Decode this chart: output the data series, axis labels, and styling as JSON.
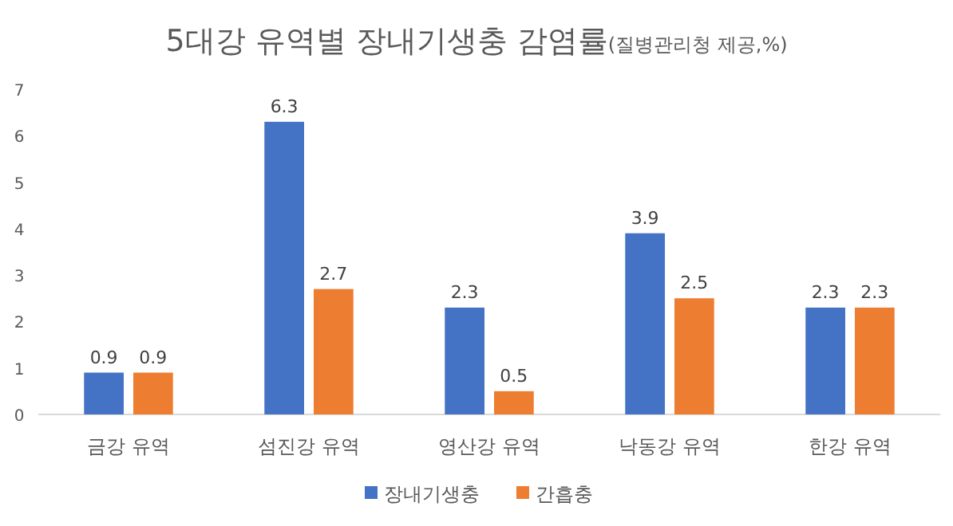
{
  "chart_data": {
    "type": "bar",
    "title": "5대강 유역별 장내기생충 감염률",
    "subtitle": "(질병관리청 제공,%)",
    "categories": [
      "금강 유역",
      "섬진강 유역",
      "영산강 유역",
      "낙동강 유역",
      "한강 유역"
    ],
    "series": [
      {
        "name": "장내기생충",
        "color": "#4472c4",
        "values": [
          0.9,
          6.3,
          2.3,
          3.9,
          2.3
        ]
      },
      {
        "name": "간흡충",
        "color": "#ed7d31",
        "values": [
          0.9,
          2.7,
          0.5,
          2.5,
          2.3
        ]
      }
    ],
    "ylim": [
      0,
      7
    ],
    "yticks": [
      0,
      1,
      2,
      3,
      4,
      5,
      6,
      7
    ],
    "grid": false,
    "legend": "bottom",
    "data_labels": true
  }
}
